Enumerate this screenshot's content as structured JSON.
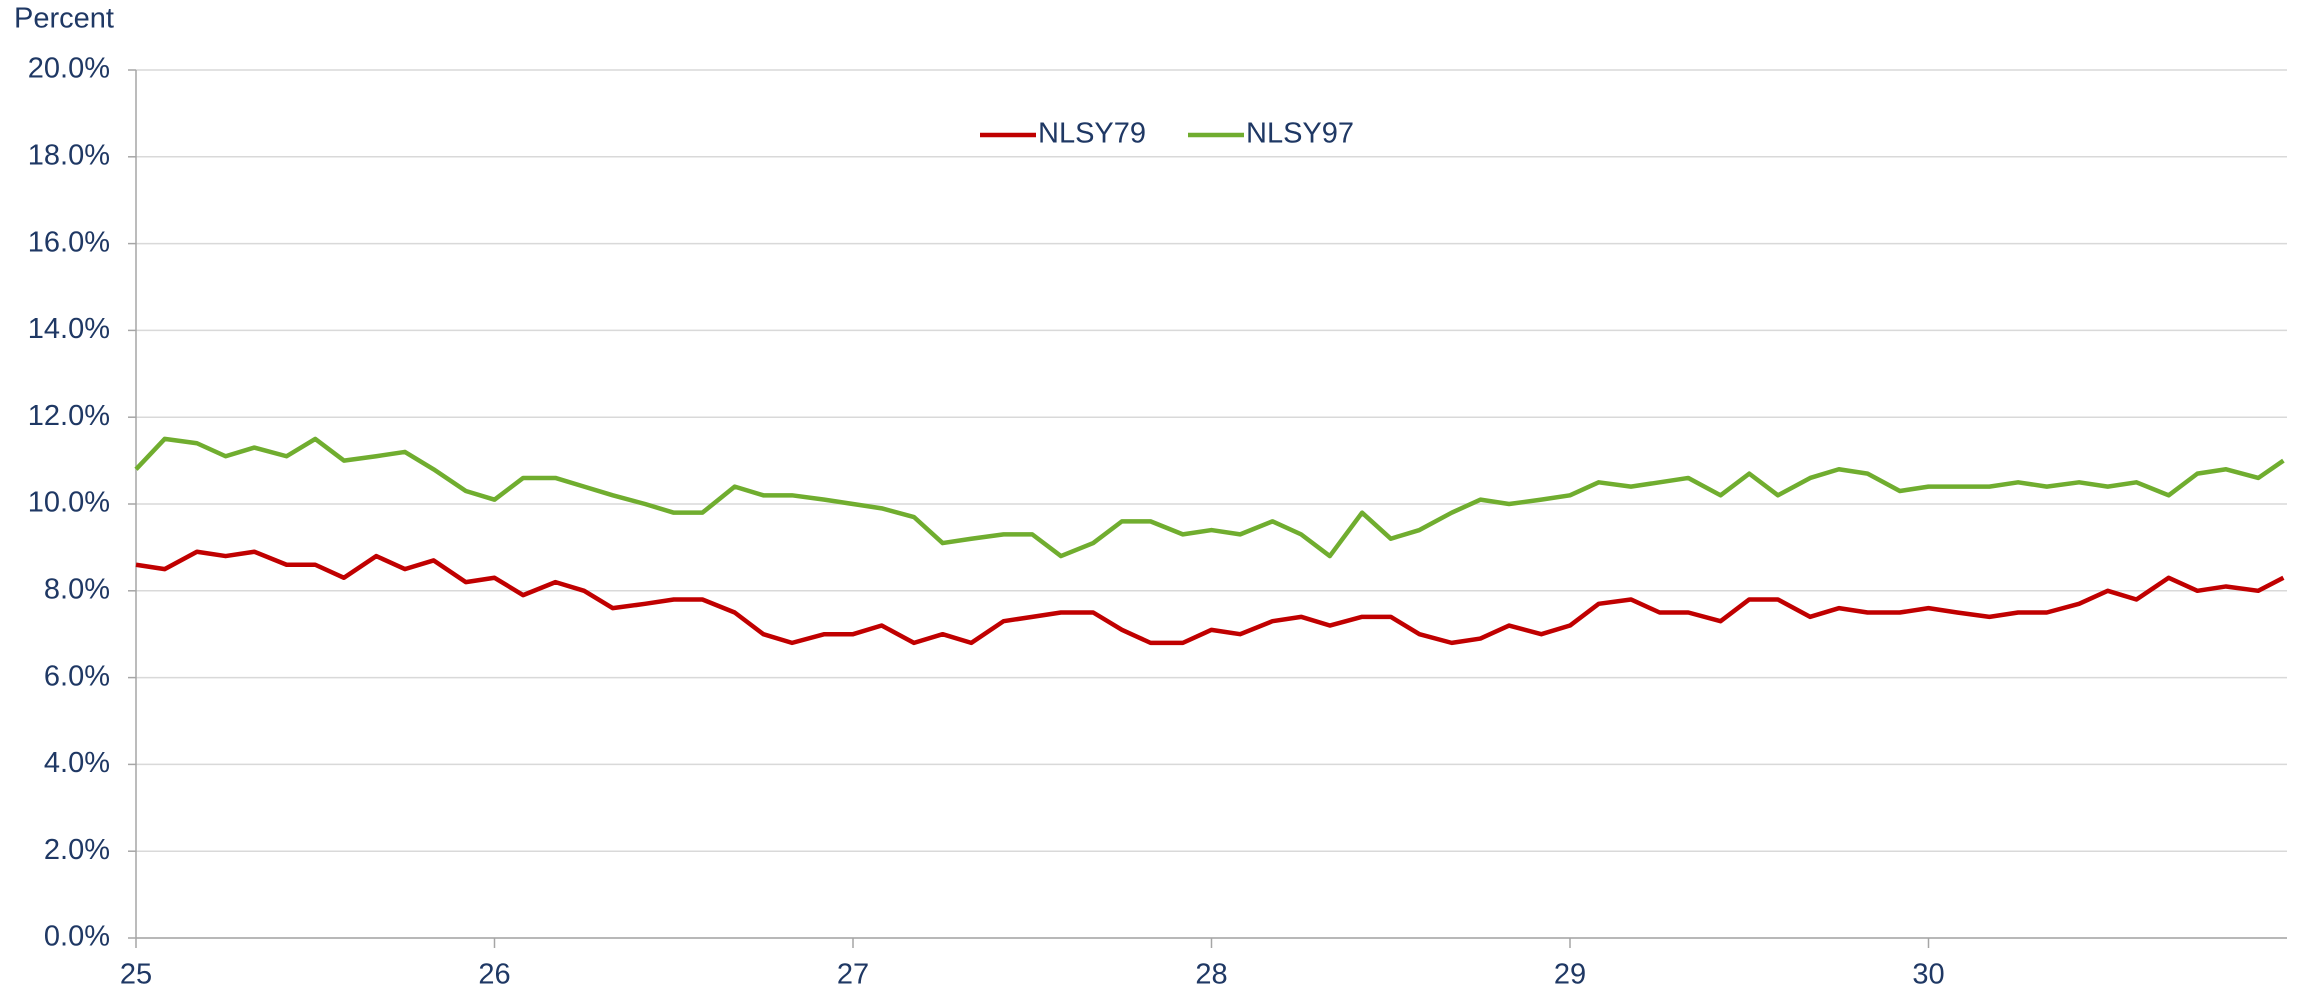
{
  "chart_data": {
    "type": "line",
    "ylabel": "Percent",
    "x": [
      25.0,
      25.08,
      25.17,
      25.25,
      25.33,
      25.42,
      25.5,
      25.58,
      25.67,
      25.75,
      25.83,
      25.92,
      26.0,
      26.08,
      26.17,
      26.25,
      26.33,
      26.42,
      26.5,
      26.58,
      26.67,
      26.75,
      26.83,
      26.92,
      27.0,
      27.08,
      27.17,
      27.25,
      27.33,
      27.42,
      27.5,
      27.58,
      27.67,
      27.75,
      27.83,
      27.92,
      28.0,
      28.08,
      28.17,
      28.25,
      28.33,
      28.42,
      28.5,
      28.58,
      28.67,
      28.75,
      28.83,
      28.92,
      29.0,
      29.08,
      29.17,
      29.25,
      29.33,
      29.42,
      29.5,
      29.58,
      29.67,
      29.75,
      29.83,
      29.92,
      30.0,
      30.08,
      30.17,
      30.25,
      30.33,
      30.42,
      30.5,
      30.58,
      30.67,
      30.75,
      30.83,
      30.92,
      30.99
    ],
    "series": [
      {
        "name": "NLSY79",
        "color": "#c00000",
        "values": [
          8.6,
          8.5,
          8.9,
          8.8,
          8.9,
          8.6,
          8.6,
          8.3,
          8.8,
          8.5,
          8.7,
          8.2,
          8.3,
          7.9,
          8.2,
          8.0,
          7.6,
          7.7,
          7.8,
          7.8,
          7.5,
          7.0,
          6.8,
          7.0,
          7.0,
          7.2,
          6.8,
          7.0,
          6.8,
          7.3,
          7.4,
          7.5,
          7.5,
          7.1,
          6.8,
          6.8,
          7.1,
          7.0,
          7.3,
          7.4,
          7.2,
          7.4,
          7.4,
          7.0,
          6.8,
          6.9,
          7.2,
          7.0,
          7.2,
          7.7,
          7.8,
          7.5,
          7.5,
          7.3,
          7.8,
          7.8,
          7.4,
          7.6,
          7.5,
          7.5,
          7.6,
          7.5,
          7.4,
          7.5,
          7.5,
          7.7,
          8.0,
          7.8,
          8.3,
          8.0,
          8.1,
          8.0,
          8.3
        ]
      },
      {
        "name": "NLSY97",
        "color": "#70ad2f",
        "values": [
          10.8,
          11.5,
          11.4,
          11.1,
          11.3,
          11.1,
          11.5,
          11.0,
          11.1,
          11.2,
          10.8,
          10.3,
          10.1,
          10.6,
          10.6,
          10.4,
          10.2,
          10.0,
          9.8,
          9.8,
          10.4,
          10.2,
          10.2,
          10.1,
          10.0,
          9.9,
          9.7,
          9.1,
          9.2,
          9.3,
          9.3,
          8.8,
          9.1,
          9.6,
          9.6,
          9.3,
          9.4,
          9.3,
          9.6,
          9.3,
          8.8,
          9.8,
          9.2,
          9.4,
          9.8,
          10.1,
          10.0,
          10.1,
          10.2,
          10.5,
          10.4,
          10.5,
          10.6,
          10.2,
          10.7,
          10.2,
          10.6,
          10.8,
          10.7,
          10.3,
          10.4,
          10.4,
          10.4,
          10.5,
          10.4,
          10.5,
          10.4,
          10.5,
          10.2,
          10.7,
          10.8,
          10.6,
          11.0
        ]
      }
    ],
    "xlim": [
      25,
      31
    ],
    "xticks": [
      25,
      26,
      27,
      28,
      29,
      30
    ],
    "ylim": [
      0,
      20
    ],
    "yticks": [
      {
        "value": 0,
        "label": "0.0%"
      },
      {
        "value": 2,
        "label": "2.0%"
      },
      {
        "value": 4,
        "label": "4.0%"
      },
      {
        "value": 6,
        "label": "6.0%"
      },
      {
        "value": 8,
        "label": "8.0%"
      },
      {
        "value": 10,
        "label": "10.0%"
      },
      {
        "value": 12,
        "label": "12.0%"
      },
      {
        "value": 14,
        "label": "14.0%"
      },
      {
        "value": 16,
        "label": "16.0%"
      },
      {
        "value": 18,
        "label": "18.0%"
      },
      {
        "value": 20,
        "label": "20.0%"
      }
    ],
    "grid": true,
    "legend": "top"
  }
}
